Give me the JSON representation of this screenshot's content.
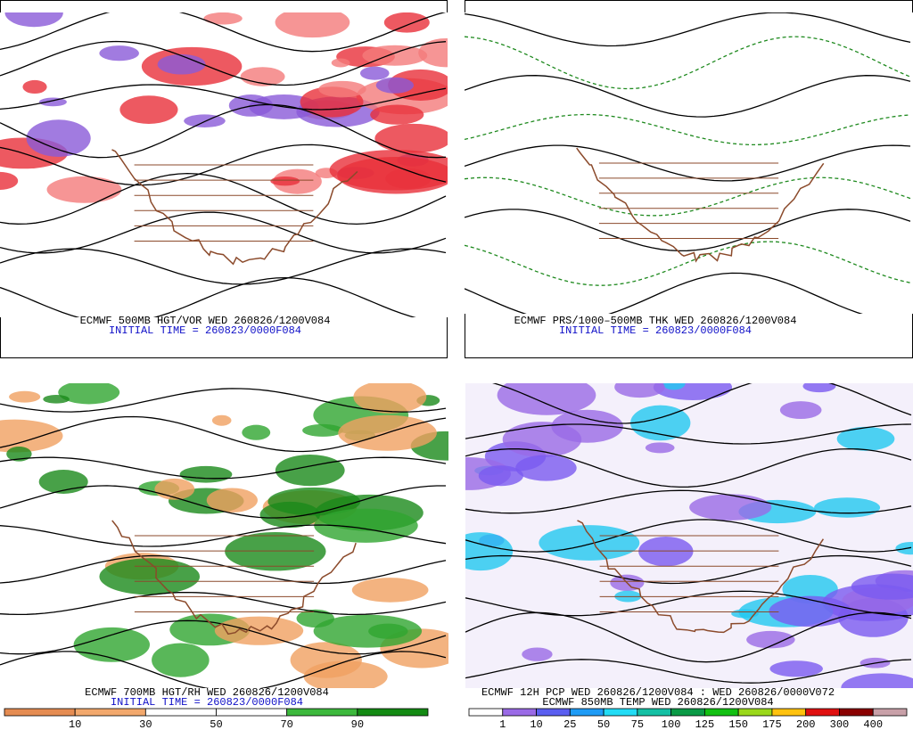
{
  "panels": [
    {
      "caption": [
        "ECMWF 500MB HGT/VOR WED 260826/1200V084",
        "INITIAL TIME = 260823/0000F084"
      ]
    },
    {
      "caption": [
        "ECMWF PRS/1000–500MB THK WED 260826/1200V084",
        "INITIAL TIME = 260823/0000F084"
      ]
    },
    {
      "caption": [
        "ECMWF 700MB HGT/RH WED 260826/1200V084",
        "INITIAL TIME = 260823/0000F084"
      ],
      "colorbar": {
        "labels": [
          10,
          30,
          50,
          70,
          90
        ],
        "colors": [
          "#e58c52",
          "#f2a86c",
          "#ffffff",
          "#ffffff",
          "#3cb83c",
          "#138a13"
        ]
      }
    },
    {
      "caption": [
        "ECMWF 12H PCP WED 260826/1200V084 : WED 260826/0000V072",
        "ECMWF 850MB TEMP WED 260826/1200V084"
      ],
      "colorbar": {
        "labels": [
          1,
          10,
          25,
          50,
          75,
          100,
          125,
          150,
          175,
          200,
          300,
          400
        ],
        "colors": [
          "#ffffff",
          "#9a6ae6",
          "#5a5ef0",
          "#1e9bf5",
          "#22dcf5",
          "#14c0a4",
          "#0a9a46",
          "#12c012",
          "#9ad81a",
          "#ffc20e",
          "#e01010",
          "#8a0000",
          "#c8a0a8"
        ]
      }
    }
  ]
}
